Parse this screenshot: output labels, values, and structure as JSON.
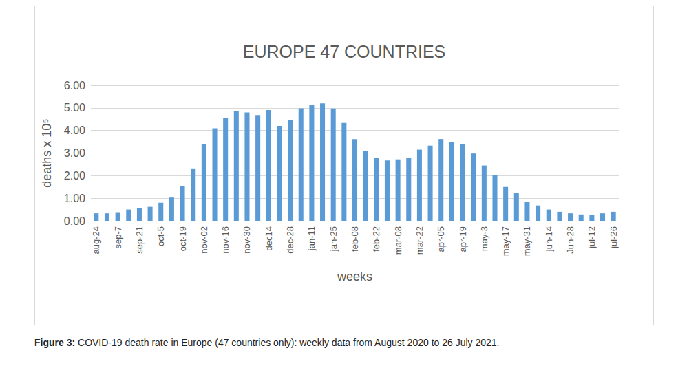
{
  "chart_data": {
    "type": "bar",
    "title": "EUROPE 47 COUNTRIES",
    "x_label": "weeks",
    "y_label": "deaths x 10⁵",
    "caption": "Figure 3: COVID-19 death rate in Europe (47 countries only): weekly data from August 2020 to 26 July 2021.",
    "categories": [
      "aug-24",
      null,
      "sep-7",
      null,
      "sep-21",
      null,
      "oct-5",
      null,
      "oct-19",
      null,
      "nov-02",
      null,
      "nov-16",
      null,
      "nov-30",
      null,
      "dec14",
      null,
      "dec-28",
      null,
      "jan-11",
      null,
      "jan-25",
      null,
      "feb-08",
      null,
      "feb-22",
      null,
      "mar-08",
      null,
      "mar-22",
      null,
      "apr-05",
      null,
      "apr-19",
      null,
      "may-3",
      null,
      "may-17",
      null,
      "may-31",
      null,
      "jun-14",
      null,
      "Jun-28",
      null,
      "jul-12",
      null,
      "jul-26"
    ],
    "values": [
      0.33,
      0.33,
      0.38,
      0.5,
      0.55,
      0.62,
      0.8,
      1.03,
      1.55,
      2.32,
      3.38,
      4.1,
      4.55,
      4.85,
      4.8,
      4.68,
      4.9,
      4.2,
      4.45,
      4.98,
      5.15,
      5.2,
      4.97,
      4.33,
      3.62,
      3.08,
      2.78,
      2.67,
      2.72,
      2.8,
      3.15,
      3.33,
      3.62,
      3.5,
      3.38,
      2.98,
      2.45,
      2.03,
      1.5,
      1.22,
      0.85,
      0.68,
      0.5,
      0.4,
      0.33,
      0.28,
      0.25,
      0.33,
      0.4
    ],
    "color": "#5b9bd5",
    "ylim": [
      0,
      6
    ],
    "yticks": [
      {
        "value": 0,
        "label": "0.00"
      },
      {
        "value": 1,
        "label": "1.00"
      },
      {
        "value": 2,
        "label": "2.00"
      },
      {
        "value": 3,
        "label": "3.00"
      },
      {
        "value": 4,
        "label": "4.00"
      },
      {
        "value": 5,
        "label": "5.00"
      },
      {
        "value": 6,
        "label": "6.00"
      }
    ],
    "grid": true
  }
}
